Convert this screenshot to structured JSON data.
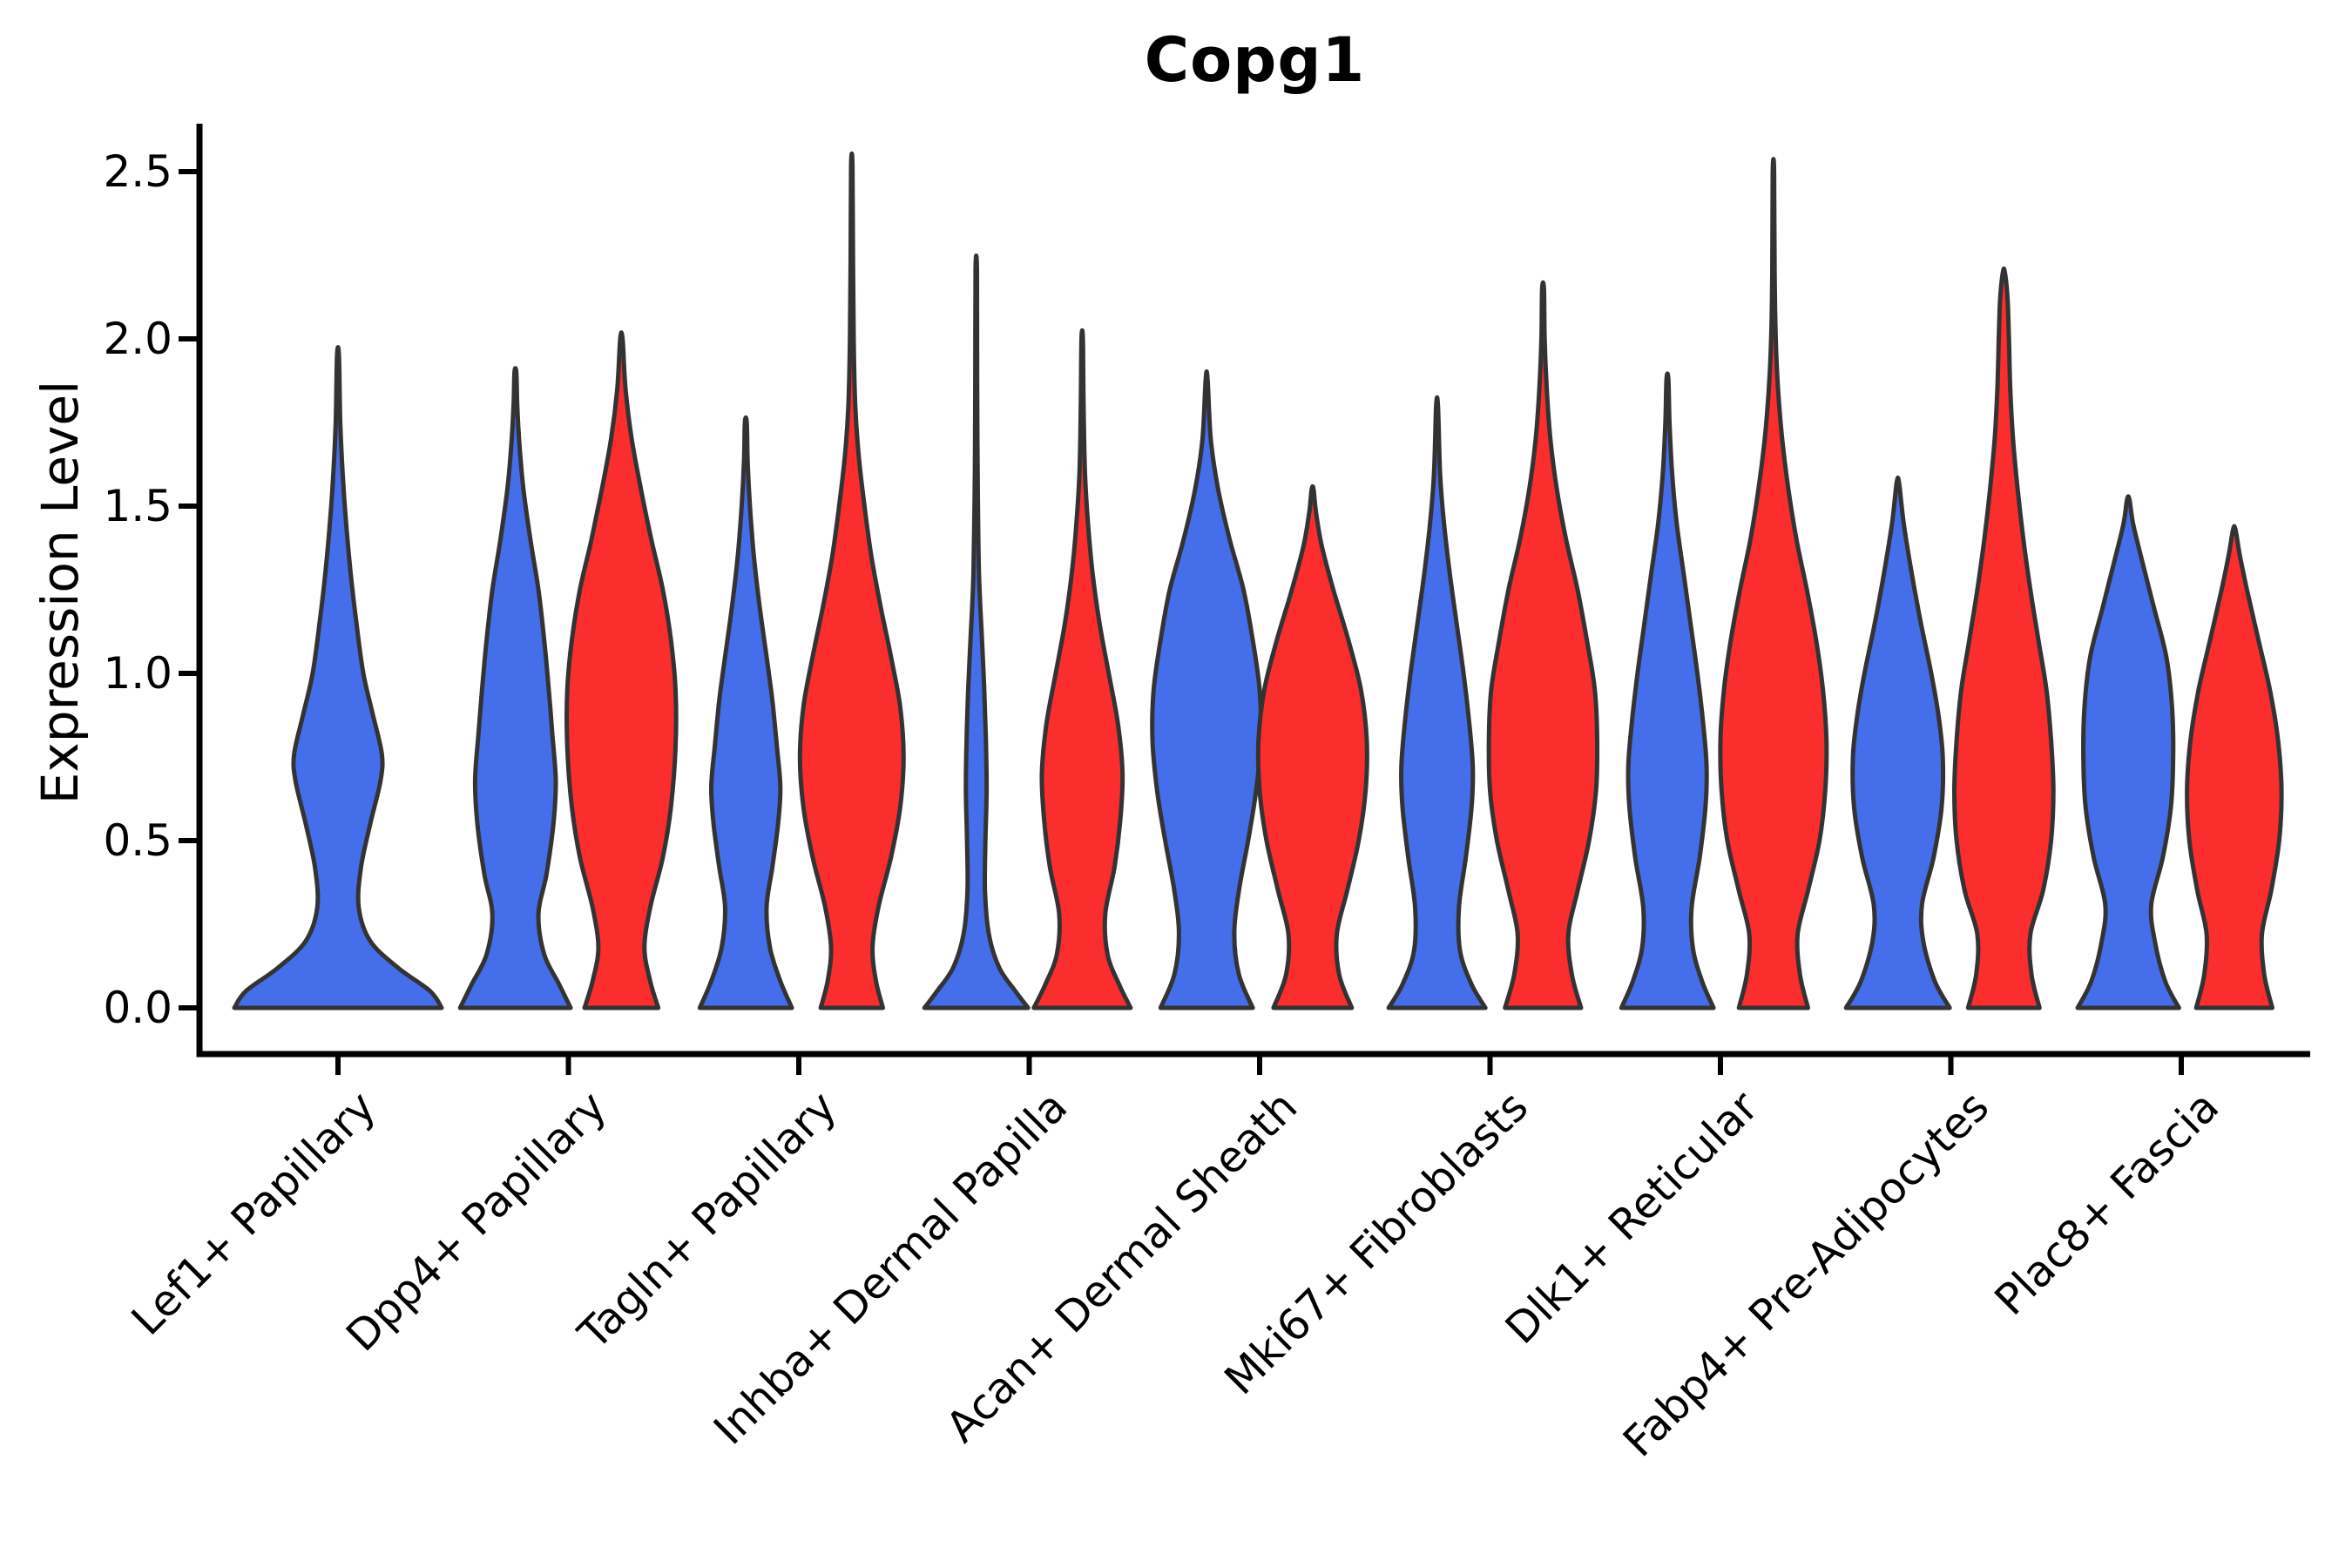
{
  "figure": {
    "background": "#ffffff"
  },
  "header": {
    "title": "Copg1"
  },
  "chart_data": {
    "type": "violin",
    "title": "Copg1",
    "xlabel": "",
    "ylabel": "Expression Level",
    "ytick_labels": [
      "0.0",
      "0.5",
      "1.0",
      "1.5",
      "2.0",
      "2.5"
    ],
    "ytick_values": [
      0,
      0.5,
      1.0,
      1.5,
      2.0,
      2.5
    ],
    "ylim": [
      0,
      2.52
    ],
    "grid": false,
    "legend_position": "none",
    "axis_color": "#000000",
    "outline_color": "#333333",
    "categories": [
      "Lef1+ Papillary",
      "Dpp4+ Papillary",
      "Tagln+ Papillary",
      "Inhba+ Dermal Papilla",
      "Acan+ Dermal Sheath",
      "Mki67+ Fibroblasts",
      "Dlk1+ Reticular",
      "Fabp4+ Pre-Adipocytes",
      "Plac8+ Fascia"
    ],
    "series": [
      {
        "key": "blue",
        "fill": "#446EEA"
      },
      {
        "key": "red",
        "fill": "#FB2D2D"
      }
    ],
    "violins": [
      {
        "category": "Lef1+ Papillary",
        "category_index": 0,
        "series": "blue",
        "offset": 0,
        "max_value": 1.95,
        "profile": [
          [
            0,
            0.45
          ],
          [
            0.05,
            0.4
          ],
          [
            0.12,
            0.26
          ],
          [
            0.2,
            0.14
          ],
          [
            0.3,
            0.09
          ],
          [
            0.42,
            0.1
          ],
          [
            0.55,
            0.14
          ],
          [
            0.68,
            0.185
          ],
          [
            0.76,
            0.19
          ],
          [
            0.88,
            0.15
          ],
          [
            1.0,
            0.11
          ],
          [
            1.15,
            0.08
          ],
          [
            1.3,
            0.055
          ],
          [
            1.45,
            0.035
          ],
          [
            1.6,
            0.02
          ],
          [
            1.75,
            0.01
          ],
          [
            1.95,
            0.004
          ]
        ]
      },
      {
        "category": "Dpp4+ Papillary",
        "category_index": 1,
        "series": "blue",
        "offset": -0.23,
        "max_value": 1.9,
        "profile": [
          [
            0,
            0.24
          ],
          [
            0.07,
            0.19
          ],
          [
            0.16,
            0.125
          ],
          [
            0.28,
            0.1
          ],
          [
            0.4,
            0.135
          ],
          [
            0.55,
            0.165
          ],
          [
            0.68,
            0.175
          ],
          [
            0.82,
            0.16
          ],
          [
            0.95,
            0.145
          ],
          [
            1.1,
            0.125
          ],
          [
            1.25,
            0.1
          ],
          [
            1.4,
            0.065
          ],
          [
            1.55,
            0.035
          ],
          [
            1.68,
            0.018
          ],
          [
            1.8,
            0.008
          ],
          [
            1.9,
            0.004
          ]
        ]
      },
      {
        "category": "Dpp4+ Papillary",
        "category_index": 1,
        "series": "red",
        "offset": 0.23,
        "max_value": 2.0,
        "profile": [
          [
            0,
            0.16
          ],
          [
            0.08,
            0.125
          ],
          [
            0.18,
            0.1
          ],
          [
            0.3,
            0.125
          ],
          [
            0.45,
            0.18
          ],
          [
            0.6,
            0.215
          ],
          [
            0.78,
            0.235
          ],
          [
            0.95,
            0.235
          ],
          [
            1.1,
            0.215
          ],
          [
            1.25,
            0.18
          ],
          [
            1.4,
            0.13
          ],
          [
            1.55,
            0.085
          ],
          [
            1.7,
            0.045
          ],
          [
            1.85,
            0.018
          ],
          [
            2.0,
            0.005
          ]
        ]
      },
      {
        "category": "Tagln+ Papillary",
        "category_index": 2,
        "series": "blue",
        "offset": -0.23,
        "max_value": 1.75,
        "profile": [
          [
            0,
            0.2
          ],
          [
            0.08,
            0.15
          ],
          [
            0.18,
            0.105
          ],
          [
            0.3,
            0.09
          ],
          [
            0.42,
            0.115
          ],
          [
            0.55,
            0.14
          ],
          [
            0.66,
            0.15
          ],
          [
            0.78,
            0.135
          ],
          [
            0.92,
            0.115
          ],
          [
            1.05,
            0.09
          ],
          [
            1.2,
            0.06
          ],
          [
            1.35,
            0.035
          ],
          [
            1.5,
            0.018
          ],
          [
            1.63,
            0.008
          ],
          [
            1.75,
            0.004
          ]
        ]
      },
      {
        "category": "Tagln+ Papillary",
        "category_index": 2,
        "series": "red",
        "offset": 0.23,
        "max_value": 2.52,
        "profile": [
          [
            0,
            0.135
          ],
          [
            0.08,
            0.105
          ],
          [
            0.18,
            0.09
          ],
          [
            0.3,
            0.115
          ],
          [
            0.45,
            0.17
          ],
          [
            0.6,
            0.21
          ],
          [
            0.75,
            0.225
          ],
          [
            0.9,
            0.21
          ],
          [
            1.05,
            0.17
          ],
          [
            1.2,
            0.125
          ],
          [
            1.35,
            0.085
          ],
          [
            1.5,
            0.055
          ],
          [
            1.65,
            0.03
          ],
          [
            1.8,
            0.015
          ],
          [
            2.0,
            0.008
          ],
          [
            2.25,
            0.005
          ],
          [
            2.52,
            0.003
          ]
        ]
      },
      {
        "category": "Inhba+ Dermal Papilla",
        "category_index": 3,
        "series": "blue",
        "offset": -0.23,
        "max_value": 2.21,
        "profile": [
          [
            0,
            0.225
          ],
          [
            0.05,
            0.17
          ],
          [
            0.12,
            0.1
          ],
          [
            0.22,
            0.055
          ],
          [
            0.35,
            0.038
          ],
          [
            0.5,
            0.04
          ],
          [
            0.65,
            0.045
          ],
          [
            0.8,
            0.042
          ],
          [
            0.95,
            0.035
          ],
          [
            1.1,
            0.025
          ],
          [
            1.3,
            0.012
          ],
          [
            1.6,
            0.006
          ],
          [
            1.9,
            0.004
          ],
          [
            2.21,
            0.003
          ]
        ]
      },
      {
        "category": "Inhba+ Dermal Papilla",
        "category_index": 3,
        "series": "red",
        "offset": 0.23,
        "max_value": 2.0,
        "profile": [
          [
            0,
            0.21
          ],
          [
            0.07,
            0.16
          ],
          [
            0.16,
            0.11
          ],
          [
            0.28,
            0.1
          ],
          [
            0.42,
            0.14
          ],
          [
            0.56,
            0.165
          ],
          [
            0.7,
            0.175
          ],
          [
            0.85,
            0.155
          ],
          [
            1.0,
            0.115
          ],
          [
            1.15,
            0.075
          ],
          [
            1.3,
            0.045
          ],
          [
            1.45,
            0.025
          ],
          [
            1.6,
            0.012
          ],
          [
            1.8,
            0.006
          ],
          [
            2.0,
            0.003
          ]
        ]
      },
      {
        "category": "Acan+ Dermal Sheath",
        "category_index": 4,
        "series": "blue",
        "offset": -0.23,
        "max_value": 1.88,
        "profile": [
          [
            0,
            0.2
          ],
          [
            0.1,
            0.14
          ],
          [
            0.22,
            0.12
          ],
          [
            0.35,
            0.14
          ],
          [
            0.5,
            0.18
          ],
          [
            0.65,
            0.215
          ],
          [
            0.8,
            0.235
          ],
          [
            0.95,
            0.23
          ],
          [
            1.1,
            0.2
          ],
          [
            1.25,
            0.16
          ],
          [
            1.4,
            0.1
          ],
          [
            1.55,
            0.05
          ],
          [
            1.7,
            0.018
          ],
          [
            1.88,
            0.004
          ]
        ]
      },
      {
        "category": "Acan+ Dermal Sheath",
        "category_index": 4,
        "series": "red",
        "offset": 0.23,
        "max_value": 1.55,
        "profile": [
          [
            0,
            0.17
          ],
          [
            0.1,
            0.115
          ],
          [
            0.22,
            0.105
          ],
          [
            0.35,
            0.15
          ],
          [
            0.5,
            0.2
          ],
          [
            0.65,
            0.23
          ],
          [
            0.8,
            0.235
          ],
          [
            0.95,
            0.21
          ],
          [
            1.1,
            0.155
          ],
          [
            1.25,
            0.09
          ],
          [
            1.38,
            0.04
          ],
          [
            1.48,
            0.015
          ],
          [
            1.55,
            0.004
          ]
        ]
      },
      {
        "category": "Mki67+ Fibroblasts",
        "category_index": 5,
        "series": "blue",
        "offset": -0.23,
        "max_value": 1.8,
        "profile": [
          [
            0,
            0.21
          ],
          [
            0.07,
            0.15
          ],
          [
            0.17,
            0.1
          ],
          [
            0.3,
            0.095
          ],
          [
            0.45,
            0.125
          ],
          [
            0.6,
            0.15
          ],
          [
            0.72,
            0.155
          ],
          [
            0.85,
            0.14
          ],
          [
            1.0,
            0.115
          ],
          [
            1.15,
            0.085
          ],
          [
            1.3,
            0.055
          ],
          [
            1.45,
            0.03
          ],
          [
            1.6,
            0.013
          ],
          [
            1.8,
            0.004
          ]
        ]
      },
      {
        "category": "Mki67+ Fibroblasts",
        "category_index": 5,
        "series": "red",
        "offset": 0.23,
        "max_value": 2.15,
        "profile": [
          [
            0,
            0.165
          ],
          [
            0.1,
            0.125
          ],
          [
            0.22,
            0.11
          ],
          [
            0.35,
            0.15
          ],
          [
            0.5,
            0.2
          ],
          [
            0.65,
            0.23
          ],
          [
            0.8,
            0.235
          ],
          [
            0.95,
            0.225
          ],
          [
            1.1,
            0.19
          ],
          [
            1.25,
            0.15
          ],
          [
            1.4,
            0.1
          ],
          [
            1.55,
            0.06
          ],
          [
            1.7,
            0.032
          ],
          [
            1.85,
            0.016
          ],
          [
            2.0,
            0.007
          ],
          [
            2.15,
            0.004
          ]
        ]
      },
      {
        "category": "Dlk1+ Reticular",
        "category_index": 6,
        "series": "blue",
        "offset": -0.23,
        "max_value": 1.88,
        "profile": [
          [
            0,
            0.2
          ],
          [
            0.08,
            0.15
          ],
          [
            0.18,
            0.11
          ],
          [
            0.3,
            0.105
          ],
          [
            0.45,
            0.14
          ],
          [
            0.6,
            0.165
          ],
          [
            0.72,
            0.17
          ],
          [
            0.85,
            0.155
          ],
          [
            1.0,
            0.13
          ],
          [
            1.15,
            0.1
          ],
          [
            1.3,
            0.07
          ],
          [
            1.45,
            0.04
          ],
          [
            1.6,
            0.02
          ],
          [
            1.75,
            0.009
          ],
          [
            1.88,
            0.004
          ]
        ]
      },
      {
        "category": "Dlk1+ Reticular",
        "category_index": 6,
        "series": "red",
        "offset": 0.23,
        "max_value": 2.5,
        "profile": [
          [
            0,
            0.15
          ],
          [
            0.1,
            0.115
          ],
          [
            0.22,
            0.105
          ],
          [
            0.35,
            0.15
          ],
          [
            0.5,
            0.2
          ],
          [
            0.65,
            0.225
          ],
          [
            0.8,
            0.23
          ],
          [
            0.95,
            0.215
          ],
          [
            1.1,
            0.185
          ],
          [
            1.25,
            0.145
          ],
          [
            1.4,
            0.1
          ],
          [
            1.55,
            0.065
          ],
          [
            1.7,
            0.038
          ],
          [
            1.85,
            0.02
          ],
          [
            2.0,
            0.01
          ],
          [
            2.2,
            0.005
          ],
          [
            2.5,
            0.003
          ]
        ]
      },
      {
        "category": "Fabp4+ Pre-Adipocytes",
        "category_index": 7,
        "series": "blue",
        "offset": -0.23,
        "max_value": 1.57,
        "profile": [
          [
            0,
            0.225
          ],
          [
            0.08,
            0.16
          ],
          [
            0.2,
            0.11
          ],
          [
            0.31,
            0.105
          ],
          [
            0.45,
            0.155
          ],
          [
            0.6,
            0.19
          ],
          [
            0.75,
            0.195
          ],
          [
            0.88,
            0.175
          ],
          [
            1.0,
            0.145
          ],
          [
            1.15,
            0.1
          ],
          [
            1.3,
            0.06
          ],
          [
            1.45,
            0.025
          ],
          [
            1.57,
            0.005
          ]
        ]
      },
      {
        "category": "Fabp4+ Pre-Adipocytes",
        "category_index": 7,
        "series": "red",
        "offset": 0.23,
        "max_value": 2.2,
        "profile": [
          [
            0,
            0.155
          ],
          [
            0.1,
            0.12
          ],
          [
            0.22,
            0.115
          ],
          [
            0.35,
            0.17
          ],
          [
            0.5,
            0.205
          ],
          [
            0.65,
            0.215
          ],
          [
            0.8,
            0.205
          ],
          [
            0.95,
            0.185
          ],
          [
            1.1,
            0.15
          ],
          [
            1.25,
            0.115
          ],
          [
            1.4,
            0.085
          ],
          [
            1.55,
            0.06
          ],
          [
            1.7,
            0.04
          ],
          [
            1.85,
            0.028
          ],
          [
            2.0,
            0.022
          ],
          [
            2.12,
            0.016
          ],
          [
            2.2,
            0.004
          ]
        ]
      },
      {
        "category": "Plac8+ Fascia",
        "category_index": 8,
        "series": "blue",
        "offset": -0.23,
        "max_value": 1.52,
        "profile": [
          [
            0,
            0.22
          ],
          [
            0.08,
            0.16
          ],
          [
            0.2,
            0.115
          ],
          [
            0.31,
            0.1
          ],
          [
            0.45,
            0.15
          ],
          [
            0.6,
            0.185
          ],
          [
            0.75,
            0.195
          ],
          [
            0.9,
            0.19
          ],
          [
            1.05,
            0.165
          ],
          [
            1.2,
            0.11
          ],
          [
            1.35,
            0.055
          ],
          [
            1.45,
            0.02
          ],
          [
            1.52,
            0.005
          ]
        ]
      },
      {
        "category": "Plac8+ Fascia",
        "category_index": 8,
        "series": "red",
        "offset": 0.23,
        "max_value": 1.43,
        "profile": [
          [
            0,
            0.165
          ],
          [
            0.1,
            0.13
          ],
          [
            0.22,
            0.12
          ],
          [
            0.35,
            0.16
          ],
          [
            0.5,
            0.195
          ],
          [
            0.65,
            0.205
          ],
          [
            0.8,
            0.19
          ],
          [
            0.95,
            0.155
          ],
          [
            1.1,
            0.105
          ],
          [
            1.25,
            0.055
          ],
          [
            1.35,
            0.025
          ],
          [
            1.43,
            0.005
          ]
        ]
      }
    ]
  }
}
